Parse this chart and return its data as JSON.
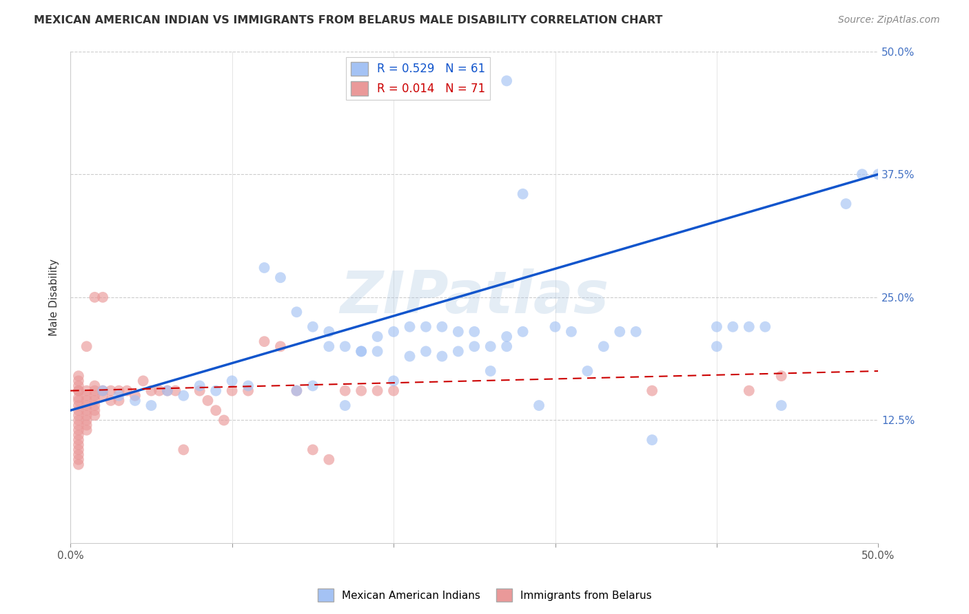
{
  "title": "MEXICAN AMERICAN INDIAN VS IMMIGRANTS FROM BELARUS MALE DISABILITY CORRELATION CHART",
  "source": "Source: ZipAtlas.com",
  "ylabel": "Male Disability",
  "watermark": "ZIPatlas",
  "blue_R": 0.529,
  "blue_N": 61,
  "pink_R": 0.014,
  "pink_N": 71,
  "xmin": 0.0,
  "xmax": 0.5,
  "ymin": 0.0,
  "ymax": 0.5,
  "x_tick_positions": [
    0.0,
    0.1,
    0.2,
    0.3,
    0.4,
    0.5
  ],
  "x_tick_labels": [
    "0.0%",
    "",
    "",
    "",
    "",
    "50.0%"
  ],
  "y_tick_positions": [
    0.125,
    0.25,
    0.375,
    0.5
  ],
  "y_tick_labels": [
    "12.5%",
    "25.0%",
    "37.5%",
    "50.0%"
  ],
  "blue_color": "#a4c2f4",
  "pink_color": "#ea9999",
  "blue_line_color": "#1155cc",
  "pink_line_color": "#cc0000",
  "blue_line_x0": 0.0,
  "blue_line_y0": 0.135,
  "blue_line_x1": 0.5,
  "blue_line_y1": 0.375,
  "pink_line_x0": 0.0,
  "pink_line_y0": 0.155,
  "pink_line_x1": 0.5,
  "pink_line_y1": 0.175,
  "blue_scatter_x": [
    0.02,
    0.03,
    0.04,
    0.05,
    0.06,
    0.07,
    0.08,
    0.09,
    0.1,
    0.11,
    0.12,
    0.13,
    0.14,
    0.15,
    0.16,
    0.17,
    0.18,
    0.19,
    0.2,
    0.21,
    0.22,
    0.23,
    0.24,
    0.25,
    0.26,
    0.27,
    0.28,
    0.29,
    0.3,
    0.31,
    0.32,
    0.33,
    0.34,
    0.35,
    0.14,
    0.15,
    0.16,
    0.17,
    0.18,
    0.19,
    0.2,
    0.21,
    0.22,
    0.23,
    0.24,
    0.25,
    0.26,
    0.27,
    0.4,
    0.41,
    0.42,
    0.43,
    0.44,
    0.5,
    0.24,
    0.27,
    0.28,
    0.36,
    0.4,
    0.48,
    0.49
  ],
  "blue_scatter_y": [
    0.155,
    0.15,
    0.145,
    0.14,
    0.155,
    0.15,
    0.16,
    0.155,
    0.165,
    0.16,
    0.28,
    0.27,
    0.155,
    0.16,
    0.2,
    0.2,
    0.195,
    0.195,
    0.165,
    0.19,
    0.195,
    0.19,
    0.195,
    0.2,
    0.2,
    0.21,
    0.215,
    0.14,
    0.22,
    0.215,
    0.175,
    0.2,
    0.215,
    0.215,
    0.235,
    0.22,
    0.215,
    0.14,
    0.195,
    0.21,
    0.215,
    0.22,
    0.22,
    0.22,
    0.215,
    0.215,
    0.175,
    0.2,
    0.22,
    0.22,
    0.22,
    0.22,
    0.14,
    0.375,
    0.47,
    0.47,
    0.355,
    0.105,
    0.2,
    0.345,
    0.375
  ],
  "pink_scatter_x": [
    0.005,
    0.005,
    0.005,
    0.005,
    0.005,
    0.005,
    0.005,
    0.005,
    0.005,
    0.005,
    0.005,
    0.005,
    0.005,
    0.005,
    0.005,
    0.005,
    0.005,
    0.005,
    0.005,
    0.005,
    0.01,
    0.01,
    0.01,
    0.01,
    0.01,
    0.01,
    0.01,
    0.01,
    0.01,
    0.01,
    0.015,
    0.015,
    0.015,
    0.015,
    0.015,
    0.015,
    0.015,
    0.015,
    0.02,
    0.02,
    0.02,
    0.025,
    0.025,
    0.03,
    0.03,
    0.035,
    0.04,
    0.045,
    0.05,
    0.055,
    0.06,
    0.065,
    0.07,
    0.08,
    0.085,
    0.09,
    0.095,
    0.1,
    0.11,
    0.12,
    0.13,
    0.14,
    0.15,
    0.16,
    0.17,
    0.18,
    0.19,
    0.2,
    0.36,
    0.42,
    0.44
  ],
  "pink_scatter_y": [
    0.155,
    0.148,
    0.16,
    0.165,
    0.17,
    0.145,
    0.14,
    0.135,
    0.13,
    0.125,
    0.12,
    0.115,
    0.11,
    0.105,
    0.1,
    0.095,
    0.09,
    0.085,
    0.08,
    0.155,
    0.155,
    0.15,
    0.145,
    0.14,
    0.135,
    0.13,
    0.125,
    0.12,
    0.115,
    0.2,
    0.16,
    0.155,
    0.15,
    0.145,
    0.14,
    0.135,
    0.13,
    0.25,
    0.155,
    0.15,
    0.25,
    0.155,
    0.145,
    0.155,
    0.145,
    0.155,
    0.15,
    0.165,
    0.155,
    0.155,
    0.155,
    0.155,
    0.095,
    0.155,
    0.145,
    0.135,
    0.125,
    0.155,
    0.155,
    0.205,
    0.2,
    0.155,
    0.095,
    0.085,
    0.155,
    0.155,
    0.155,
    0.155,
    0.155,
    0.155,
    0.17
  ],
  "legend_blue_label": "R = 0.529   N = 61",
  "legend_pink_label": "R = 0.014   N = 71",
  "legend_blue_text": "Mexican American Indians",
  "legend_pink_text": "Immigrants from Belarus",
  "background_color": "#ffffff",
  "grid_color": "#cccccc"
}
